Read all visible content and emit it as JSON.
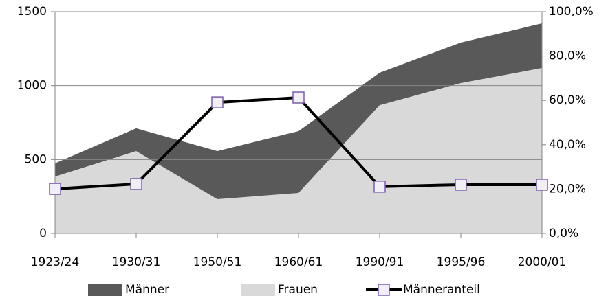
{
  "chart_data": {
    "type": "stacked-area-line",
    "categories": [
      "1923/24",
      "1930/31",
      "1950/51",
      "1960/61",
      "1990/91",
      "1995/96",
      "2000/01"
    ],
    "series": [
      {
        "name": "Männer",
        "color": "#595959",
        "values": [
          89,
          154,
          325,
          418,
          219,
          274,
          302
        ]
      },
      {
        "name": "Frauen",
        "color": "#d9d9d9",
        "values": [
          385,
          557,
          232,
          274,
          868,
          1017,
          1119
        ]
      },
      {
        "name": "Männeranteil",
        "color": "#000000",
        "axis": "y2",
        "values": [
          20.1,
          22.3,
          59.1,
          61.3,
          21.1,
          22.0,
          22.0
        ]
      }
    ],
    "ylim": [
      0,
      1500
    ],
    "yticks": [
      0,
      500,
      1000,
      1500
    ],
    "y2lim": [
      0,
      100
    ],
    "y2ticks": [
      {
        "value": 0,
        "label": "0,0%"
      },
      {
        "value": 20,
        "label": "20,0%"
      },
      {
        "value": 40,
        "label": "40,0%"
      },
      {
        "value": 60,
        "label": "60,0%"
      },
      {
        "value": 80,
        "label": "80,0%"
      },
      {
        "value": 100,
        "label": "100,0%"
      }
    ],
    "grid": true,
    "legend": "bottom"
  }
}
